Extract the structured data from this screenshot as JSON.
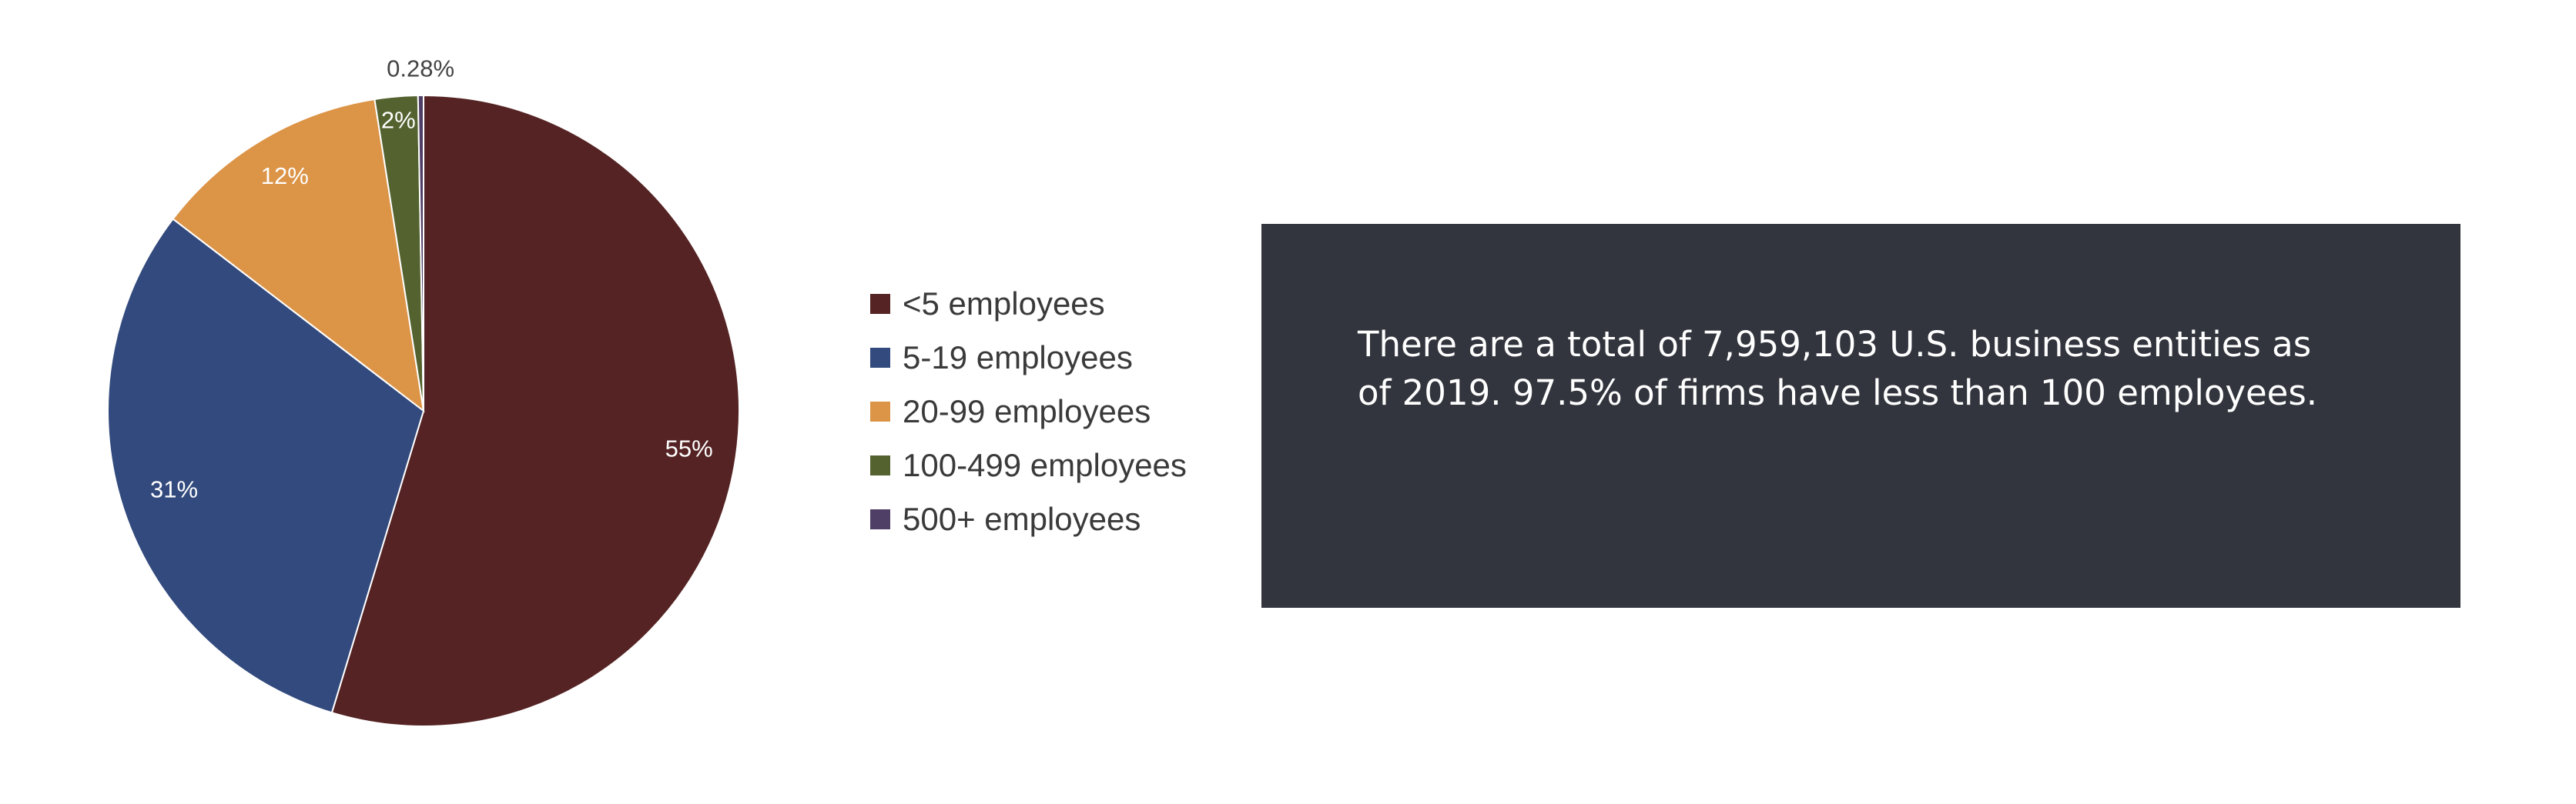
{
  "chart_data": {
    "type": "pie",
    "categories": [
      "<5 employees",
      "5-19 employees",
      "20-99 employees",
      "100-499 employees",
      "500+ employees"
    ],
    "values": [
      54.69,
      30.72,
      12.11,
      2.2,
      0.28
    ],
    "data_labels": [
      "55%",
      "31%",
      "12%",
      "2%",
      "0.28%"
    ],
    "colors": [
      "#552323",
      "#324a7d",
      "#dc9447",
      "#546230",
      "#4f3f66"
    ],
    "legend": "right",
    "start_angle_deg": 0,
    "direction": "clockwise"
  },
  "info_box": {
    "text": "There are a total of 7,959,103 U.S. business entities as of 2019. 97.5% of firms have less than 100 employees."
  }
}
